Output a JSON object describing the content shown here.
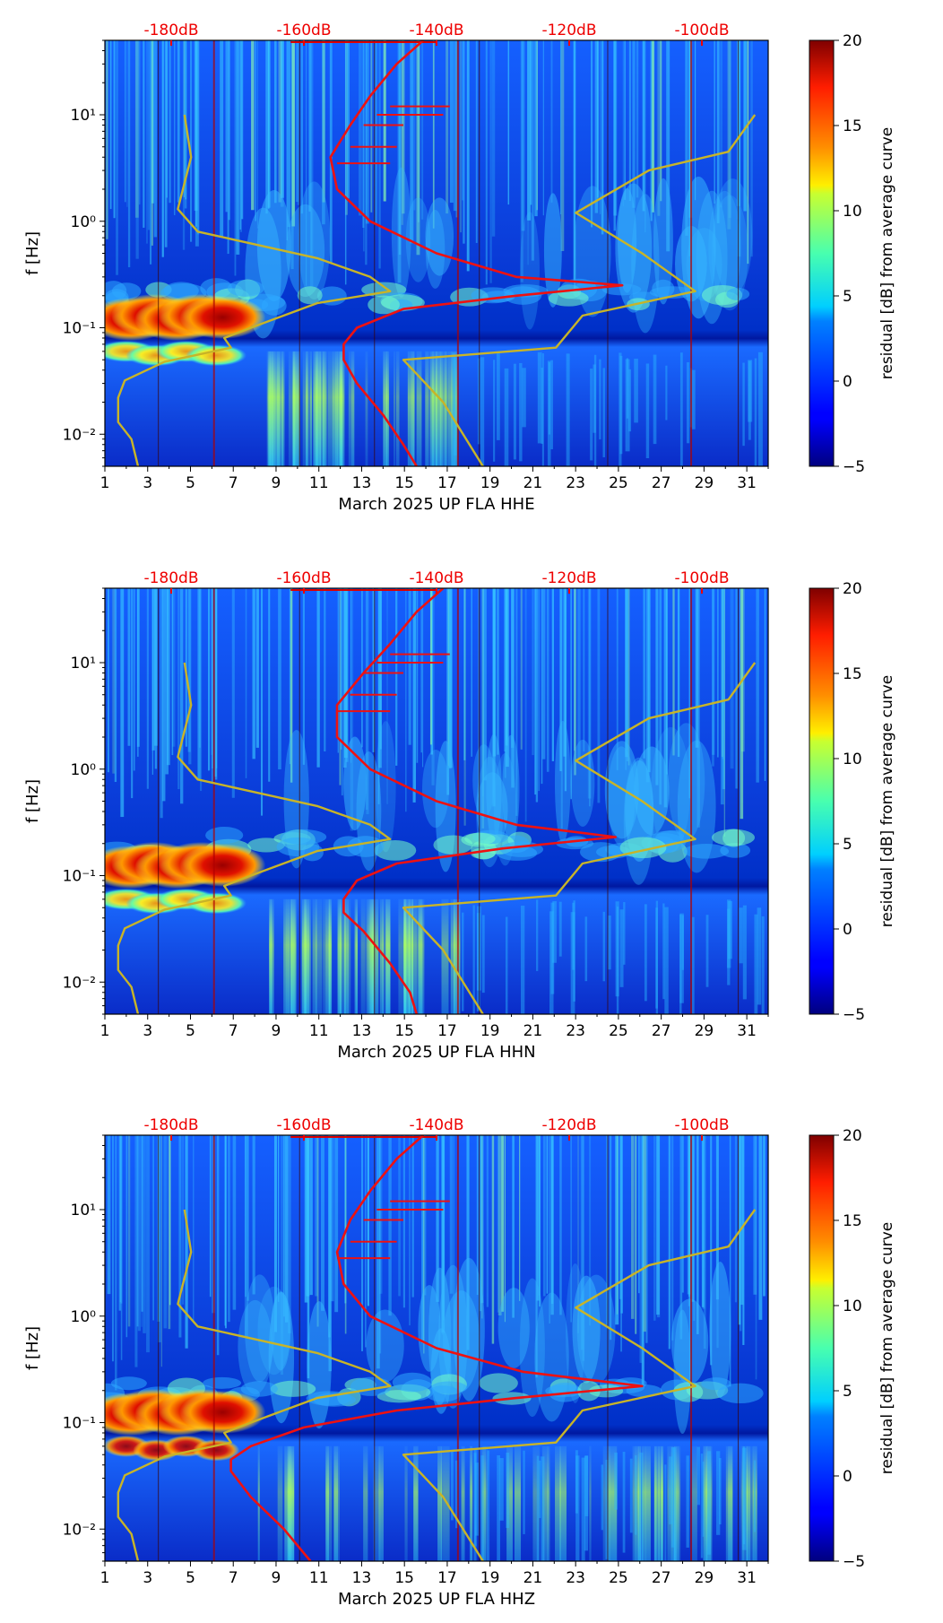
{
  "colorbar": {
    "label": "residual [dB] from average curve",
    "ticks": [
      "20",
      "15",
      "10",
      "5",
      "0",
      "−5"
    ],
    "tick_values": [
      20,
      15,
      10,
      5,
      0,
      -5
    ],
    "colormap": "jet"
  },
  "top_axis": {
    "color": "#ee0000",
    "labels": [
      "-180dB",
      "-160dB",
      "-140dB",
      "-120dB",
      "-100dB"
    ]
  },
  "axis": {
    "ylabel": "f [Hz]",
    "yticks": [
      "10¹",
      "10⁰",
      "10⁻¹",
      "10⁻²"
    ],
    "xticks": [
      "1",
      "3",
      "5",
      "7",
      "9",
      "11",
      "13",
      "15",
      "17",
      "19",
      "21",
      "23",
      "25",
      "27",
      "29",
      "31"
    ]
  },
  "chart_data": [
    {
      "type": "heatmap",
      "title": "",
      "xlabel": "March 2025 UP FLA  HHE",
      "ylabel": "f [Hz]",
      "x_range_days": [
        1,
        32
      ],
      "y_range_hz": [
        0.005,
        50
      ],
      "x_scale": "linear",
      "y_scale": "log",
      "color_range_db": [
        -5,
        20
      ],
      "top_axis_db_range": [
        -190,
        -90
      ],
      "series": [
        {
          "name": "average PSD",
          "color": "#ee1111",
          "unit": "dB",
          "points": [
            [
              -142,
              50
            ],
            [
              -146,
              30
            ],
            [
              -150,
              15
            ],
            [
              -153,
              8
            ],
            [
              -156,
              4
            ],
            [
              -155,
              2
            ],
            [
              -150,
              1
            ],
            [
              -140,
              0.5
            ],
            [
              -128,
              0.3
            ],
            [
              -112,
              0.25
            ],
            [
              -128,
              0.2
            ],
            [
              -145,
              0.15
            ],
            [
              -152,
              0.1
            ],
            [
              -154,
              0.07
            ],
            [
              -154,
              0.05
            ],
            [
              -152,
              0.03
            ],
            [
              -148,
              0.015
            ],
            [
              -145,
              0.008
            ],
            [
              -143,
              0.005
            ]
          ]
        },
        {
          "name": "noise model lower",
          "color": "#c8b428",
          "unit": "dB",
          "points": [
            [
              -178,
              10
            ],
            [
              -177,
              4
            ],
            [
              -179,
              1.3
            ],
            [
              -176,
              0.8
            ],
            [
              -158,
              0.45
            ],
            [
              -150,
              0.3
            ],
            [
              -147,
              0.22
            ],
            [
              -158,
              0.17
            ],
            [
              -168,
              0.1
            ],
            [
              -172,
              0.08
            ],
            [
              -171,
              0.065
            ],
            [
              -181,
              0.048
            ],
            [
              -187,
              0.032
            ],
            [
              -188,
              0.022
            ],
            [
              -188,
              0.013
            ],
            [
              -186,
              0.009
            ],
            [
              -185,
              0.005
            ]
          ]
        },
        {
          "name": "noise model upper",
          "color": "#c8b428",
          "unit": "dB",
          "points": [
            [
              -92,
              10
            ],
            [
              -96,
              4.5
            ],
            [
              -108,
              3
            ],
            [
              -119,
              1.2
            ],
            [
              -109,
              0.5
            ],
            [
              -101,
              0.22
            ],
            [
              -118,
              0.13
            ],
            [
              -122,
              0.065
            ],
            [
              -145,
              0.05
            ],
            [
              -139,
              0.02
            ],
            [
              -133,
              0.005
            ]
          ]
        }
      ]
    },
    {
      "type": "heatmap",
      "title": "",
      "xlabel": "March 2025 UP FLA  HHN",
      "ylabel": "f [Hz]",
      "x_range_days": [
        1,
        32
      ],
      "y_range_hz": [
        0.005,
        50
      ],
      "x_scale": "linear",
      "y_scale": "log",
      "color_range_db": [
        -5,
        20
      ],
      "top_axis_db_range": [
        -190,
        -90
      ],
      "series": [
        {
          "name": "average PSD",
          "color": "#ee1111",
          "unit": "dB",
          "points": [
            [
              -139,
              50
            ],
            [
              -143,
              30
            ],
            [
              -147,
              15
            ],
            [
              -151,
              8
            ],
            [
              -155,
              4
            ],
            [
              -155,
              2
            ],
            [
              -150,
              1
            ],
            [
              -140,
              0.5
            ],
            [
              -128,
              0.3
            ],
            [
              -113,
              0.23
            ],
            [
              -130,
              0.18
            ],
            [
              -146,
              0.13
            ],
            [
              -152,
              0.09
            ],
            [
              -154,
              0.06
            ],
            [
              -154,
              0.045
            ],
            [
              -151,
              0.03
            ],
            [
              -147,
              0.015
            ],
            [
              -144,
              0.008
            ],
            [
              -143,
              0.005
            ]
          ]
        },
        {
          "name": "noise model lower",
          "color": "#c8b428",
          "unit": "dB",
          "points": [
            [
              -178,
              10
            ],
            [
              -177,
              4
            ],
            [
              -179,
              1.3
            ],
            [
              -176,
              0.8
            ],
            [
              -158,
              0.45
            ],
            [
              -150,
              0.3
            ],
            [
              -147,
              0.22
            ],
            [
              -158,
              0.17
            ],
            [
              -168,
              0.1
            ],
            [
              -172,
              0.08
            ],
            [
              -171,
              0.065
            ],
            [
              -181,
              0.048
            ],
            [
              -187,
              0.032
            ],
            [
              -188,
              0.022
            ],
            [
              -188,
              0.013
            ],
            [
              -186,
              0.009
            ],
            [
              -185,
              0.005
            ]
          ]
        },
        {
          "name": "noise model upper",
          "color": "#c8b428",
          "unit": "dB",
          "points": [
            [
              -92,
              10
            ],
            [
              -96,
              4.5
            ],
            [
              -108,
              3
            ],
            [
              -119,
              1.2
            ],
            [
              -109,
              0.5
            ],
            [
              -101,
              0.22
            ],
            [
              -118,
              0.13
            ],
            [
              -122,
              0.065
            ],
            [
              -145,
              0.05
            ],
            [
              -139,
              0.02
            ],
            [
              -133,
              0.005
            ]
          ]
        }
      ]
    },
    {
      "type": "heatmap",
      "title": "",
      "xlabel": "March 2025 UP FLA  HHZ",
      "ylabel": "f [Hz]",
      "x_range_days": [
        1,
        32
      ],
      "y_range_hz": [
        0.005,
        50
      ],
      "x_scale": "linear",
      "y_scale": "log",
      "color_range_db": [
        -5,
        20
      ],
      "top_axis_db_range": [
        -190,
        -90
      ],
      "series": [
        {
          "name": "average PSD",
          "color": "#ee1111",
          "unit": "dB",
          "points": [
            [
              -142,
              50
            ],
            [
              -146,
              30
            ],
            [
              -150,
              15
            ],
            [
              -153,
              8
            ],
            [
              -155,
              4
            ],
            [
              -154,
              2
            ],
            [
              -150,
              1
            ],
            [
              -140,
              0.5
            ],
            [
              -127,
              0.3
            ],
            [
              -109,
              0.22
            ],
            [
              -128,
              0.17
            ],
            [
              -146,
              0.13
            ],
            [
              -160,
              0.09
            ],
            [
              -168,
              0.06
            ],
            [
              -171,
              0.045
            ],
            [
              -171,
              0.035
            ],
            [
              -168,
              0.02
            ],
            [
              -163,
              0.01
            ],
            [
              -159,
              0.005
            ]
          ]
        },
        {
          "name": "noise model lower",
          "color": "#c8b428",
          "unit": "dB",
          "points": [
            [
              -178,
              10
            ],
            [
              -177,
              4
            ],
            [
              -179,
              1.3
            ],
            [
              -176,
              0.8
            ],
            [
              -158,
              0.45
            ],
            [
              -150,
              0.3
            ],
            [
              -147,
              0.22
            ],
            [
              -158,
              0.17
            ],
            [
              -168,
              0.1
            ],
            [
              -172,
              0.08
            ],
            [
              -171,
              0.065
            ],
            [
              -181,
              0.048
            ],
            [
              -187,
              0.032
            ],
            [
              -188,
              0.022
            ],
            [
              -188,
              0.013
            ],
            [
              -186,
              0.009
            ],
            [
              -185,
              0.005
            ]
          ]
        },
        {
          "name": "noise model upper",
          "color": "#c8b428",
          "unit": "dB",
          "points": [
            [
              -92,
              10
            ],
            [
              -96,
              4.5
            ],
            [
              -108,
              3
            ],
            [
              -119,
              1.2
            ],
            [
              -109,
              0.5
            ],
            [
              -101,
              0.22
            ],
            [
              -118,
              0.13
            ],
            [
              -122,
              0.065
            ],
            [
              -145,
              0.05
            ],
            [
              -139,
              0.02
            ],
            [
              -133,
              0.005
            ]
          ]
        }
      ]
    }
  ]
}
